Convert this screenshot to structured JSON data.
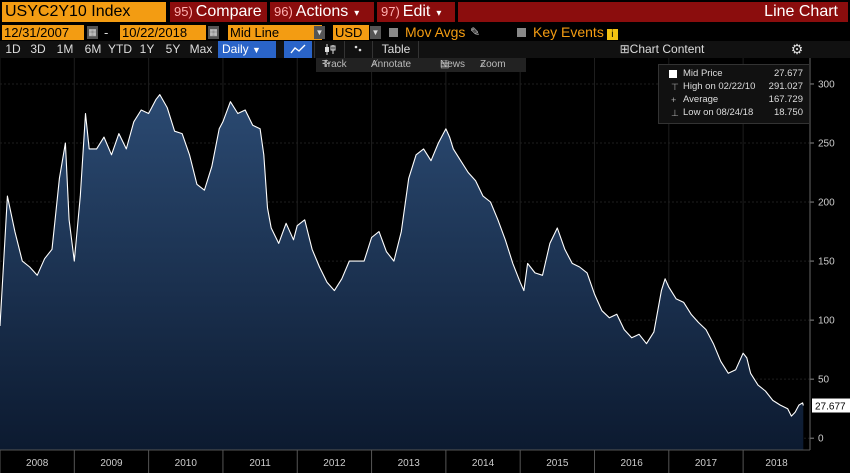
{
  "header": {
    "ticker": "USYC2Y10 Index",
    "compare_num": "95)",
    "compare_label": "Compare",
    "actions_num": "96)",
    "actions_label": "Actions",
    "edit_num": "97)",
    "edit_label": "Edit",
    "view_title": "Line Chart",
    "caret": "▾"
  },
  "controls": {
    "start_date": "12/31/2007",
    "range_dash": "-",
    "end_date": "10/22/2018",
    "line_type": "Mid Line",
    "currency": "USD",
    "mov_avgs": "Mov Avgs",
    "key_events": "Key Events",
    "info_badge": "i"
  },
  "periods": {
    "items": [
      "1D",
      "3D",
      "1M",
      "6M",
      "YTD",
      "1Y",
      "5Y",
      "Max"
    ],
    "frequency": "Daily",
    "table": "Table",
    "chart_content": "Chart Content"
  },
  "chart_tools": {
    "track": "Track",
    "annotate": "Annotate",
    "news": "News",
    "zoom": "Zoom"
  },
  "legend": {
    "mid_price_label": "Mid Price",
    "mid_price_value": "27.677",
    "high_label": "High on 02/22/10",
    "high_value": "291.027",
    "average_label": "Average",
    "average_value": "167.729",
    "low_label": "Low on 08/24/18",
    "low_value": "18.750"
  },
  "colors": {
    "accent": "#f39c12",
    "menu_bg": "#8b0d0d",
    "area_top": "#2b4a72",
    "area_bottom": "#0c1a30",
    "line": "#ffffff"
  },
  "chart_data": {
    "type": "area",
    "title": "",
    "xlabel": "",
    "ylabel": "",
    "last_value_label": "27.677",
    "ylim": [
      -10,
      322
    ],
    "yticks": [
      0,
      50,
      100,
      150,
      200,
      250,
      300
    ],
    "xlim": [
      2008.0,
      2018.9
    ],
    "year_labels": [
      "2008",
      "2009",
      "2010",
      "2011",
      "2012",
      "2013",
      "2014",
      "2015",
      "2016",
      "2017",
      "2018"
    ],
    "grid": true,
    "series": [
      {
        "name": "Mid Price",
        "points": [
          [
            2008.0,
            95
          ],
          [
            2008.05,
            150
          ],
          [
            2008.1,
            205
          ],
          [
            2008.2,
            175
          ],
          [
            2008.3,
            150
          ],
          [
            2008.4,
            145
          ],
          [
            2008.5,
            138
          ],
          [
            2008.6,
            152
          ],
          [
            2008.7,
            160
          ],
          [
            2008.8,
            220
          ],
          [
            2008.88,
            250
          ],
          [
            2008.93,
            185
          ],
          [
            2009.0,
            150
          ],
          [
            2009.08,
            205
          ],
          [
            2009.15,
            275
          ],
          [
            2009.2,
            245
          ],
          [
            2009.3,
            245
          ],
          [
            2009.4,
            255
          ],
          [
            2009.5,
            240
          ],
          [
            2009.6,
            258
          ],
          [
            2009.7,
            245
          ],
          [
            2009.8,
            268
          ],
          [
            2009.9,
            278
          ],
          [
            2010.0,
            275
          ],
          [
            2010.1,
            287
          ],
          [
            2010.15,
            291
          ],
          [
            2010.25,
            280
          ],
          [
            2010.35,
            260
          ],
          [
            2010.45,
            258
          ],
          [
            2010.55,
            240
          ],
          [
            2010.65,
            215
          ],
          [
            2010.75,
            210
          ],
          [
            2010.85,
            230
          ],
          [
            2010.95,
            262
          ],
          [
            2011.0,
            268
          ],
          [
            2011.1,
            285
          ],
          [
            2011.2,
            275
          ],
          [
            2011.3,
            278
          ],
          [
            2011.4,
            265
          ],
          [
            2011.5,
            262
          ],
          [
            2011.55,
            240
          ],
          [
            2011.6,
            195
          ],
          [
            2011.65,
            178
          ],
          [
            2011.75,
            165
          ],
          [
            2011.85,
            182
          ],
          [
            2011.95,
            168
          ],
          [
            2012.0,
            180
          ],
          [
            2012.1,
            185
          ],
          [
            2012.2,
            160
          ],
          [
            2012.3,
            145
          ],
          [
            2012.4,
            132
          ],
          [
            2012.5,
            125
          ],
          [
            2012.6,
            135
          ],
          [
            2012.7,
            150
          ],
          [
            2012.8,
            150
          ],
          [
            2012.9,
            150
          ],
          [
            2013.0,
            170
          ],
          [
            2013.1,
            175
          ],
          [
            2013.2,
            158
          ],
          [
            2013.3,
            150
          ],
          [
            2013.4,
            175
          ],
          [
            2013.5,
            220
          ],
          [
            2013.6,
            240
          ],
          [
            2013.7,
            245
          ],
          [
            2013.8,
            235
          ],
          [
            2013.9,
            250
          ],
          [
            2014.0,
            262
          ],
          [
            2014.05,
            255
          ],
          [
            2014.1,
            245
          ],
          [
            2014.2,
            235
          ],
          [
            2014.3,
            225
          ],
          [
            2014.4,
            218
          ],
          [
            2014.5,
            205
          ],
          [
            2014.6,
            200
          ],
          [
            2014.7,
            185
          ],
          [
            2014.8,
            168
          ],
          [
            2014.9,
            148
          ],
          [
            2015.0,
            132
          ],
          [
            2015.05,
            125
          ],
          [
            2015.1,
            148
          ],
          [
            2015.2,
            140
          ],
          [
            2015.3,
            138
          ],
          [
            2015.4,
            165
          ],
          [
            2015.5,
            178
          ],
          [
            2015.6,
            160
          ],
          [
            2015.7,
            148
          ],
          [
            2015.8,
            145
          ],
          [
            2015.9,
            140
          ],
          [
            2016.0,
            122
          ],
          [
            2016.1,
            108
          ],
          [
            2016.2,
            102
          ],
          [
            2016.3,
            105
          ],
          [
            2016.4,
            92
          ],
          [
            2016.5,
            85
          ],
          [
            2016.6,
            88
          ],
          [
            2016.7,
            80
          ],
          [
            2016.8,
            90
          ],
          [
            2016.9,
            125
          ],
          [
            2016.95,
            135
          ],
          [
            2017.0,
            128
          ],
          [
            2017.1,
            118
          ],
          [
            2017.2,
            115
          ],
          [
            2017.3,
            105
          ],
          [
            2017.4,
            98
          ],
          [
            2017.5,
            92
          ],
          [
            2017.6,
            80
          ],
          [
            2017.7,
            65
          ],
          [
            2017.8,
            55
          ],
          [
            2017.9,
            58
          ],
          [
            2018.0,
            72
          ],
          [
            2018.05,
            68
          ],
          [
            2018.1,
            55
          ],
          [
            2018.2,
            45
          ],
          [
            2018.3,
            40
          ],
          [
            2018.4,
            32
          ],
          [
            2018.5,
            28
          ],
          [
            2018.6,
            25
          ],
          [
            2018.65,
            18.75
          ],
          [
            2018.7,
            22
          ],
          [
            2018.75,
            28
          ],
          [
            2018.8,
            30
          ],
          [
            2018.81,
            27.677
          ]
        ]
      }
    ]
  }
}
